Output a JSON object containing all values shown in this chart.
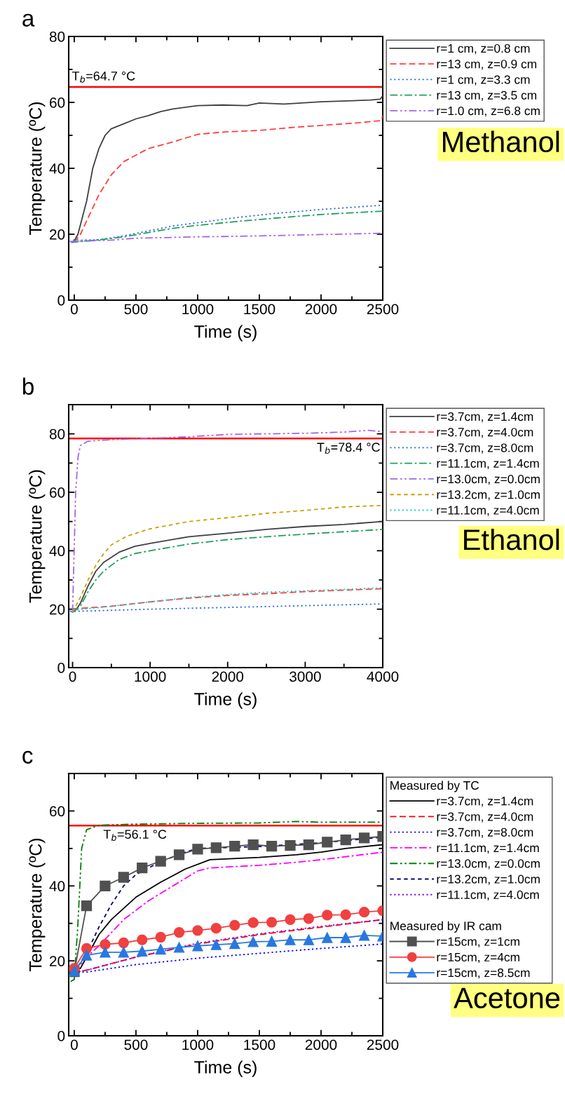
{
  "chart_data": [
    {
      "type": "line",
      "title": "a",
      "xlabel": "Time (s)",
      "ylabel": "Temperature (ºC)",
      "xlim": [
        -45,
        2500
      ],
      "xticks": [
        0,
        500,
        1000,
        1500,
        2000,
        2500
      ],
      "ylim": [
        0,
        80
      ],
      "yticks": [
        0,
        20,
        40,
        60,
        80
      ],
      "legend": "right",
      "grid": false,
      "ref_lines": [
        {
          "axis": "y",
          "value": 64.7,
          "label": "T$_{b}$=64.7 °C",
          "color": "#ff0000"
        }
      ],
      "annotations": [
        "Methanol"
      ],
      "series": [
        {
          "name": "r=1 cm, z=0.8 cm",
          "color": "#404040",
          "line_style": "solid",
          "x": [
            0,
            30,
            100,
            150,
            200,
            250,
            300,
            400,
            500,
            600,
            700,
            800,
            1000,
            1200,
            1400,
            1500,
            1700,
            2000,
            2400,
            2480,
            2500
          ],
          "values": [
            18,
            20,
            30,
            40,
            46,
            50,
            52,
            53.5,
            55,
            56,
            57.2,
            58,
            59,
            59.2,
            59,
            59.8,
            59.5,
            60.2,
            60.7,
            61,
            62
          ]
        },
        {
          "name": "r=13 cm, z=0.9 cm",
          "color": "#ff4040",
          "line_style": "dashed",
          "x": [
            0,
            50,
            100,
            200,
            300,
            400,
            500,
            600,
            800,
            1000,
            1200,
            1500,
            1800,
            2000,
            2300,
            2490,
            2500
          ],
          "values": [
            17.5,
            20,
            24,
            32,
            38,
            42,
            44,
            46,
            48,
            50.3,
            51,
            51.5,
            52.5,
            53,
            53.8,
            54.5,
            56
          ]
        },
        {
          "name": "r=1 cm, z=3.3 cm",
          "color": "#2a6fdb",
          "line_style": "dotted",
          "x": [
            -10,
            200,
            400,
            600,
            800,
            1000,
            1300,
            1600,
            2000,
            2500
          ],
          "values": [
            18.2,
            18.3,
            19.5,
            21,
            22.5,
            23.5,
            25,
            26.2,
            27.5,
            28.8
          ]
        },
        {
          "name": "r=13 cm, z=3.5 cm",
          "color": "#1fa05a",
          "line_style": "dashdot",
          "x": [
            -25,
            200,
            400,
            600,
            800,
            1000,
            1300,
            1600,
            2000,
            2500
          ],
          "values": [
            17.5,
            18.3,
            19.2,
            20.5,
            21.8,
            22.7,
            23.8,
            24.8,
            26,
            27
          ]
        },
        {
          "name": "r=1.0 cm, z=6.8 cm",
          "color": "#a566e8",
          "line_style": "dashdotdot",
          "x": [
            -40,
            300,
            500,
            1000,
            1500,
            2000,
            2500
          ],
          "values": [
            17.8,
            18.2,
            18.8,
            19.2,
            19.5,
            19.9,
            20.3
          ]
        }
      ]
    },
    {
      "type": "line",
      "title": "b",
      "xlabel": "Time (s)",
      "ylabel": "Temperature (ºC)",
      "xlim": [
        -50,
        4000
      ],
      "xticks": [
        0,
        1000,
        2000,
        3000,
        4000
      ],
      "ylim": [
        0,
        90
      ],
      "yticks": [
        0,
        20,
        40,
        60,
        80
      ],
      "legend": "right",
      "grid": false,
      "ref_lines": [
        {
          "axis": "y",
          "value": 78.4,
          "label": "T$_{b}$=78.4 °C",
          "color": "#ff0000"
        }
      ],
      "annotations": [
        "Ethanol"
      ],
      "series": [
        {
          "name": "r=3.7cm, z=1.4cm",
          "color": "#404040",
          "line_style": "solid",
          "x": [
            0,
            50,
            100,
            200,
            300,
            400,
            600,
            800,
            1000,
            1500,
            2000,
            2500,
            3000,
            3500,
            4000
          ],
          "values": [
            19,
            20,
            22,
            28,
            33,
            36,
            39.5,
            41.5,
            42.5,
            44.8,
            46,
            47.3,
            48.3,
            49,
            50
          ]
        },
        {
          "name": "r=3.7cm, z=4.0cm",
          "color": "#ff4040",
          "line_style": "dashed",
          "x": [
            -5,
            500,
            1000,
            1500,
            2000,
            2500,
            3000,
            3500,
            4000
          ],
          "values": [
            20.1,
            21,
            22.5,
            23.8,
            24.7,
            25.3,
            26,
            26.5,
            27
          ]
        },
        {
          "name": "r=3.7cm, z=8.0cm",
          "color": "#2a6fdb",
          "line_style": "dotted",
          "x": [
            -30,
            1000,
            2000,
            3000,
            4000
          ],
          "values": [
            19.2,
            20,
            20.6,
            21.2,
            21.8
          ]
        },
        {
          "name": "r=11.1cm, z=1.4cm",
          "color": "#1fa05a",
          "line_style": "dashdot",
          "x": [
            0,
            100,
            200,
            300,
            400,
            600,
            800,
            1000,
            1500,
            2000,
            2500,
            3000,
            3500,
            4000
          ],
          "values": [
            19,
            21,
            26,
            30,
            33,
            37,
            39,
            40,
            42.3,
            43.8,
            44.8,
            45.7,
            46.5,
            47.3
          ]
        },
        {
          "name": "r=13.0cm, z=0.0cm",
          "color": "#a566e8",
          "line_style": "dashdotdot",
          "x": [
            0,
            20,
            40,
            70,
            100,
            200,
            500,
            1000,
            1500,
            2000,
            2500,
            3000,
            3500,
            3800,
            4000
          ],
          "values": [
            19,
            40,
            60,
            72,
            76,
            77.5,
            78,
            78.5,
            79,
            79.8,
            80,
            80.2,
            80.6,
            81.2,
            80.8
          ]
        },
        {
          "name": "r=13.2cm, z=1.0cm",
          "color": "#c9a000",
          "line_style": "shortdash",
          "x": [
            0,
            100,
            200,
            300,
            400,
            500,
            700,
            1000,
            1500,
            2000,
            2500,
            3000,
            3500,
            4000
          ],
          "values": [
            19,
            24,
            30,
            35,
            39,
            42,
            45,
            47.5,
            50,
            51.3,
            52.8,
            53.8,
            55,
            55.5
          ]
        },
        {
          "name": "r=11.1cm, z=4.0cm",
          "color": "#1ecfd6",
          "line_style": "dotted",
          "x": [
            -45,
            500,
            1000,
            1500,
            2000,
            2500,
            3000,
            3500,
            4000
          ],
          "values": [
            19.5,
            21,
            22.5,
            24,
            25,
            25.8,
            26.3,
            26.8,
            27.3
          ]
        }
      ]
    },
    {
      "type": "line",
      "title": "c",
      "xlabel": "Time (s)",
      "ylabel": "Temperature (ºC)",
      "xlim": [
        -45,
        2500
      ],
      "xticks": [
        0,
        500,
        1000,
        1500,
        2000,
        2500
      ],
      "ylim": [
        0,
        70
      ],
      "yticks": [
        0,
        20,
        40,
        60
      ],
      "legend": "right",
      "grid": false,
      "legend_title": [
        "Measured by TC",
        "Measured by IR cam"
      ],
      "ref_lines": [
        {
          "axis": "y",
          "value": 56.1,
          "label": "T$_{b}$=56.1 °C",
          "color": "#ff0000"
        }
      ],
      "annotations": [
        "Acetone"
      ],
      "series": [
        {
          "name": "r=3.7cm, z=1.4cm",
          "color": "#000000",
          "line_style": "solid",
          "x": [
            0,
            50,
            100,
            200,
            300,
            400,
            500,
            700,
            900,
            1100,
            1500,
            1800,
            2000,
            2200,
            2500
          ],
          "values": [
            17,
            18,
            21,
            27,
            31,
            34,
            37,
            41,
            44.5,
            47,
            47.6,
            48.3,
            49,
            50,
            51
          ]
        },
        {
          "name": "r=3.7cm, z=4.0cm",
          "color": "#ff0000",
          "line_style": "dashed",
          "x": [
            0,
            100,
            500,
            1000,
            1500,
            2000,
            2500
          ],
          "values": [
            17,
            17.5,
            21,
            24.5,
            27,
            29,
            31
          ]
        },
        {
          "name": "r=3.7cm, z=8.0cm",
          "color": "#0000ff",
          "line_style": "dotted",
          "x": [
            0,
            100,
            500,
            1000,
            1500,
            2000,
            2500
          ],
          "values": [
            17,
            17,
            19,
            20.7,
            22,
            23.3,
            24.5
          ]
        },
        {
          "name": "r=11.1cm, z=1.4cm",
          "color": "#ff00ff",
          "line_style": "dashdot",
          "x": [
            0,
            100,
            200,
            400,
            600,
            800,
            1000,
            1100,
            1500,
            1800,
            2000,
            2500
          ],
          "values": [
            17,
            21,
            24,
            31,
            36,
            40,
            44,
            44.8,
            45.5,
            46.3,
            47,
            49
          ]
        },
        {
          "name": "r=13.0cm, z=0.0cm",
          "color": "#008000",
          "line_style": "dashdotdot",
          "x": [
            -30,
            0,
            30,
            60,
            100,
            200,
            500,
            1000,
            1500,
            1800,
            2000,
            2500
          ],
          "values": [
            14.5,
            15,
            30,
            50,
            55,
            56.2,
            56.5,
            56.7,
            56.8,
            57.2,
            57,
            57
          ]
        },
        {
          "name": "r=13.2cm, z=1.0cm",
          "color": "#000080",
          "line_style": "shortdash",
          "x": [
            0,
            100,
            200,
            300,
            400,
            500,
            700,
            900,
            1000,
            1500,
            2000,
            2500
          ],
          "values": [
            17,
            22,
            29,
            35,
            40,
            43,
            46.5,
            49,
            50,
            50.5,
            51.5,
            53
          ]
        },
        {
          "name": "r=11.1cm, z=4.0cm",
          "color": "#8000ff",
          "line_style": "dotted",
          "x": [
            0,
            100,
            500,
            1000,
            1500,
            2000,
            2500
          ],
          "values": [
            17,
            17.5,
            21,
            24.7,
            27.2,
            29.2,
            31
          ]
        },
        {
          "name": "r=15cm, z=1cm",
          "color": "#505050",
          "line_style": "solid",
          "marker": "square",
          "x": [
            0,
            100,
            250,
            400,
            550,
            700,
            850,
            1000,
            1150,
            1300,
            1450,
            1600,
            1750,
            1900,
            2050,
            2200,
            2350,
            2500
          ],
          "values": [
            17.1,
            34.7,
            40,
            42.3,
            44.8,
            46.6,
            48.3,
            49.8,
            50.2,
            50.6,
            51,
            50.6,
            50.8,
            51,
            51.7,
            52.3,
            52.8,
            53.2
          ]
        },
        {
          "name": "r=15cm, z=4cm",
          "color": "#f04040",
          "line_style": "solid",
          "marker": "circle",
          "x": [
            0,
            100,
            250,
            400,
            550,
            700,
            850,
            1000,
            1150,
            1300,
            1450,
            1600,
            1750,
            1900,
            2050,
            2200,
            2350,
            2500
          ],
          "values": [
            18,
            23.3,
            24.4,
            24.8,
            25.6,
            26.3,
            27.6,
            28.1,
            28.7,
            29.5,
            30.2,
            30.3,
            31,
            31.3,
            32.2,
            32.3,
            33,
            33.4
          ]
        },
        {
          "name": "r=15cm, z=8.5cm",
          "color": "#2878e0",
          "line_style": "solid",
          "marker": "triangle",
          "x": [
            0,
            100,
            250,
            400,
            550,
            700,
            850,
            1000,
            1150,
            1300,
            1450,
            1600,
            1750,
            1900,
            2050,
            2200,
            2350,
            2500
          ],
          "values": [
            17.3,
            21.5,
            22.3,
            22.3,
            22.6,
            23.1,
            23.6,
            24,
            24.3,
            24.6,
            25.1,
            25.2,
            25.6,
            25.6,
            26.2,
            26.2,
            26.8,
            26.6
          ]
        }
      ]
    }
  ]
}
